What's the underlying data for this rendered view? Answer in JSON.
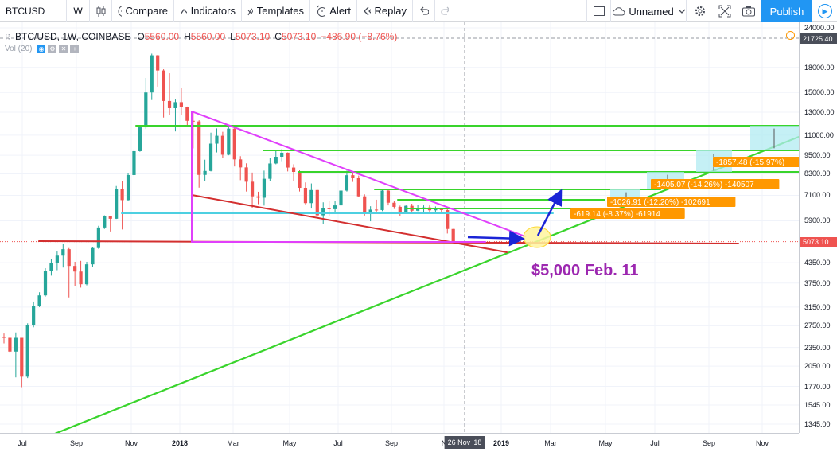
{
  "toolbar": {
    "symbol": "BTCUSD",
    "interval": "W",
    "chart_type_icon": "candles-icon",
    "compare_label": "Compare",
    "indicators_label": "Indicators",
    "templates_label": "Templates",
    "alert_label": "Alert",
    "replay_label": "Replay",
    "layout_name": "Unnamed",
    "publish_label": "Publish"
  },
  "legend": {
    "title": "BTC/USD, 1W, COINBASE",
    "open_label": "O",
    "open": "5560.00",
    "high_label": "H",
    "high": "5560.00",
    "low_label": "L",
    "low": "5073.10",
    "close_label": "C",
    "close": "5073.10",
    "change": "−486.90 (−8.76%)",
    "volume": "Vol (20)"
  },
  "crosshair": {
    "price": "21725.40",
    "time": "26 Nov '18"
  },
  "last_price": {
    "value": "5073.10",
    "color": "#ef5350"
  },
  "annotation": {
    "text": "$5,000 Feb. 11",
    "color": "#9c27b0"
  },
  "measure_labels": [
    {
      "text": "-619.14 (-8.37%) -61914"
    },
    {
      "text": "-1026.91 (-12.20%) -102691"
    },
    {
      "text": "-1405.07 (-14.26%) -140507"
    },
    {
      "text": "-1857.48 (-15.97%)"
    }
  ],
  "colors": {
    "up": "#26a69a",
    "down": "#ef5350",
    "green_lines": "#39d42c",
    "wedge": "#e040fb",
    "support": "#d32f2f",
    "cyan": "#4dd0e1",
    "arrow": "#1a24d6",
    "label_bg": "#ff9800",
    "accent": "#2196f3"
  },
  "chart_data": {
    "type": "candlestick",
    "title": "BTC/USD, 1W, COINBASE",
    "price_ticks": [
      "24000.00",
      "21725.40",
      "18000.00",
      "15000.00",
      "13000.00",
      "11000.00",
      "9500.00",
      "8300.00",
      "7100.00",
      "5900.00",
      "5073.10",
      "4350.00",
      "3750.00",
      "3150.00",
      "2750.00",
      "2350.00",
      "2050.00",
      "1770.00",
      "1545.00",
      "1345.00"
    ],
    "time_ticks": [
      "Jul",
      "Sep",
      "Nov",
      "2018",
      "Mar",
      "May",
      "Jul",
      "Sep",
      "N",
      "26 Nov '18",
      "2019",
      "Mar",
      "May",
      "Jul",
      "Sep",
      "Nov"
    ],
    "y_scale": "log",
    "ylim": [
      1300,
      24000
    ],
    "candles": [
      [
        2540,
        2600,
        2420,
        2520
      ],
      [
        2520,
        2540,
        2250,
        2280
      ],
      [
        2280,
        2620,
        1890,
        2520
      ],
      [
        2520,
        2520,
        1760,
        1900
      ],
      [
        1900,
        2800,
        1880,
        2760
      ],
      [
        2760,
        3280,
        2720,
        3180
      ],
      [
        3180,
        3510,
        3150,
        3430
      ],
      [
        3430,
        4180,
        3400,
        4100
      ],
      [
        4100,
        4480,
        3960,
        4330
      ],
      [
        4330,
        4720,
        4120,
        4580
      ],
      [
        4580,
        4980,
        4200,
        4800
      ],
      [
        4800,
        4840,
        3380,
        4250
      ],
      [
        4250,
        4380,
        3670,
        4080
      ],
      [
        4080,
        4410,
        3630,
        3720
      ],
      [
        3720,
        4380,
        3690,
        4300
      ],
      [
        4300,
        4880,
        4230,
        4840
      ],
      [
        4840,
        5690,
        4810,
        5620
      ],
      [
        5620,
        6140,
        5560,
        6100
      ],
      [
        6100,
        6110,
        5460,
        5990
      ],
      [
        5990,
        7600,
        5980,
        7430
      ],
      [
        7430,
        7870,
        5540,
        6860
      ],
      [
        6860,
        8370,
        6840,
        8230
      ],
      [
        8230,
        9930,
        8140,
        9790
      ],
      [
        9790,
        11810,
        9750,
        11640
      ],
      [
        11640,
        16670,
        11500,
        15000
      ],
      [
        15000,
        19890,
        14200,
        19650
      ],
      [
        19650,
        19700,
        15650,
        17600
      ],
      [
        17600,
        17760,
        12500,
        14100
      ],
      [
        14100,
        17250,
        12700,
        13380
      ],
      [
        13380,
        14250,
        11300,
        13980
      ],
      [
        13980,
        15500,
        12750,
        13480
      ],
      [
        13480,
        13540,
        11750,
        12210
      ],
      [
        12210,
        13100,
        9990,
        12150
      ],
      [
        12150,
        12260,
        7510,
        8240
      ],
      [
        8240,
        9200,
        7900,
        8480
      ],
      [
        8480,
        11200,
        8450,
        10340
      ],
      [
        10340,
        11550,
        9700,
        10950
      ],
      [
        10950,
        11270,
        9300,
        9540
      ],
      [
        9540,
        11790,
        9500,
        11530
      ],
      [
        11530,
        11680,
        8760,
        9220
      ],
      [
        9220,
        9440,
        7930,
        8700
      ],
      [
        8700,
        8960,
        7300,
        7840
      ],
      [
        7840,
        8380,
        6470,
        7050
      ],
      [
        7050,
        7290,
        6660,
        6980
      ],
      [
        6980,
        8500,
        6590,
        8010
      ],
      [
        8010,
        9320,
        7900,
        8950
      ],
      [
        8950,
        9820,
        8900,
        9400
      ],
      [
        9400,
        9940,
        9100,
        9680
      ],
      [
        9680,
        9700,
        8450,
        8690
      ],
      [
        8690,
        8900,
        7900,
        8420
      ],
      [
        8420,
        8520,
        7300,
        7500
      ],
      [
        7500,
        7800,
        6650,
        6710
      ],
      [
        6710,
        7740,
        6450,
        7380
      ],
      [
        7380,
        7390,
        6080,
        6140
      ],
      [
        6140,
        6750,
        5780,
        6480
      ],
      [
        6480,
        6830,
        6100,
        6420
      ],
      [
        6420,
        6800,
        6210,
        6600
      ],
      [
        6600,
        7520,
        6580,
        7350
      ],
      [
        7350,
        8500,
        7300,
        8220
      ],
      [
        8220,
        8480,
        7830,
        8040
      ],
      [
        8040,
        8200,
        7020,
        7050
      ],
      [
        7050,
        7150,
        6130,
        6280
      ],
      [
        6280,
        6560,
        5880,
        6400
      ],
      [
        6400,
        6880,
        6260,
        6380
      ],
      [
        6380,
        7400,
        6330,
        7350
      ],
      [
        7350,
        7420,
        6600,
        6730
      ],
      [
        6730,
        6830,
        6430,
        6530
      ],
      [
        6530,
        6590,
        6120,
        6260
      ],
      [
        6260,
        6600,
        6220,
        6580
      ],
      [
        6580,
        6680,
        6300,
        6350
      ],
      [
        6350,
        6620,
        6330,
        6460
      ],
      [
        6460,
        6600,
        6300,
        6500
      ],
      [
        6500,
        6600,
        6250,
        6370
      ],
      [
        6370,
        6550,
        6300,
        6420
      ],
      [
        6420,
        6450,
        6300,
        6380
      ],
      [
        6380,
        6480,
        5380,
        5560
      ],
      [
        5560,
        5560,
        5073,
        5073
      ]
    ]
  }
}
